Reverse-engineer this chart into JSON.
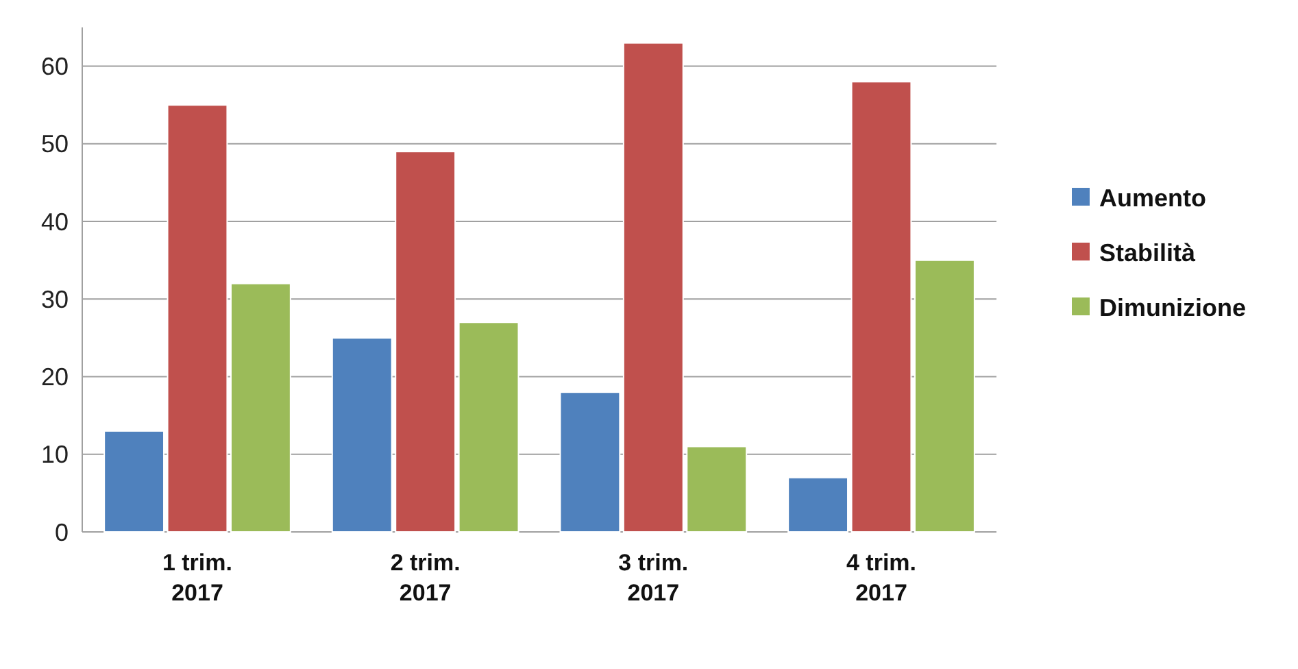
{
  "chart_data": {
    "type": "bar",
    "categories": [
      "1 trim. 2017",
      "2 trim. 2017",
      "3 trim. 2017",
      "4 trim. 2017"
    ],
    "series": [
      {
        "name": "Aumento",
        "color": "#4f81bd",
        "values": [
          13,
          25,
          18,
          7
        ]
      },
      {
        "name": "Stabilità",
        "color": "#c0504d",
        "values": [
          55,
          49,
          63,
          58
        ]
      },
      {
        "name": "Dimunizione",
        "color": "#9bbb59",
        "values": [
          32,
          27,
          11,
          35
        ]
      }
    ],
    "ylim": [
      0,
      65
    ],
    "yticks": [
      0,
      10,
      20,
      30,
      40,
      50,
      60
    ],
    "grid": "y",
    "legend": "right"
  }
}
